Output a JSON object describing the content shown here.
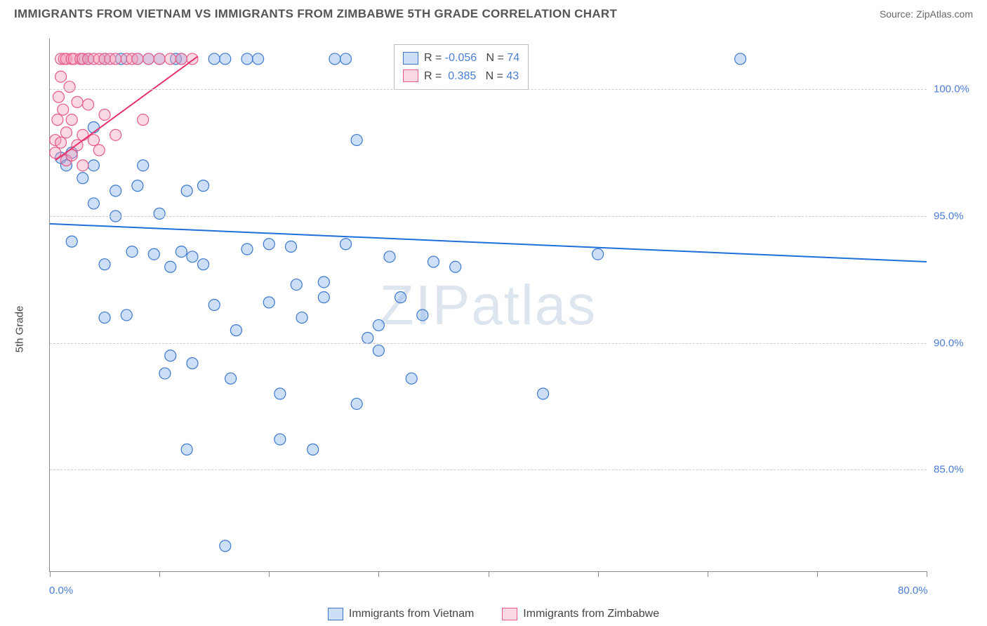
{
  "title": "IMMIGRANTS FROM VIETNAM VS IMMIGRANTS FROM ZIMBABWE 5TH GRADE CORRELATION CHART",
  "source": "Source: ZipAtlas.com",
  "ylabel": "5th Grade",
  "watermark": "ZIPatlas",
  "chart": {
    "type": "scatter",
    "background_color": "#ffffff",
    "grid_color": "#cccccc",
    "axis_color": "#888888",
    "tick_label_color": "#4a7dd4",
    "xlim": [
      0,
      80
    ],
    "ylim": [
      81,
      102
    ],
    "x_ticks": [
      0,
      10,
      20,
      30,
      40,
      50,
      60,
      70,
      80
    ],
    "x_tick_labels": {
      "0": "0.0%",
      "80": "80.0%"
    },
    "y_ticks": [
      85,
      90,
      95,
      100
    ],
    "y_tick_labels": {
      "85": "85.0%",
      "90": "90.0%",
      "95": "95.0%",
      "100": "100.0%"
    },
    "marker_radius": 8,
    "marker_stroke_width": 1.2,
    "line_width": 2
  },
  "series": [
    {
      "name": "Immigrants from Vietnam",
      "color": "#6fa4e8",
      "fill": "rgba(111,164,232,0.35)",
      "stroke": "#3b78cc",
      "R": "-0.056",
      "N": "74",
      "trend": {
        "x1": 0,
        "y1": 94.7,
        "x2": 80,
        "y2": 93.2,
        "color": "#1e6fd9"
      },
      "points": [
        [
          1,
          97.3
        ],
        [
          1.5,
          97.0
        ],
        [
          2,
          94.0
        ],
        [
          2,
          97.5
        ],
        [
          3,
          101.2
        ],
        [
          3,
          96.5
        ],
        [
          3.5,
          101.2
        ],
        [
          4,
          98.5
        ],
        [
          4,
          95.5
        ],
        [
          4,
          97.0
        ],
        [
          5,
          93.1
        ],
        [
          5,
          91.0
        ],
        [
          5,
          101.2
        ],
        [
          6,
          95.0
        ],
        [
          6,
          96.0
        ],
        [
          6.5,
          101.2
        ],
        [
          7,
          91.1
        ],
        [
          7.5,
          93.6
        ],
        [
          8,
          96.2
        ],
        [
          8,
          101.2
        ],
        [
          8.5,
          97.0
        ],
        [
          9,
          101.2
        ],
        [
          9.5,
          93.5
        ],
        [
          10,
          101.2
        ],
        [
          10,
          95.1
        ],
        [
          10.5,
          88.8
        ],
        [
          11,
          89.5
        ],
        [
          11,
          93.0
        ],
        [
          11.5,
          101.2
        ],
        [
          12,
          101.2
        ],
        [
          12,
          93.6
        ],
        [
          12.5,
          85.8
        ],
        [
          12.5,
          96.0
        ],
        [
          13,
          89.2
        ],
        [
          13,
          93.4
        ],
        [
          14,
          93.1
        ],
        [
          14,
          96.2
        ],
        [
          15,
          101.2
        ],
        [
          15,
          91.5
        ],
        [
          16,
          101.2
        ],
        [
          16,
          82.0
        ],
        [
          16.5,
          88.6
        ],
        [
          17,
          90.5
        ],
        [
          18,
          93.7
        ],
        [
          18,
          101.2
        ],
        [
          19,
          101.2
        ],
        [
          20,
          93.9
        ],
        [
          20,
          91.6
        ],
        [
          21,
          88.0
        ],
        [
          21,
          86.2
        ],
        [
          22,
          93.8
        ],
        [
          22.5,
          92.3
        ],
        [
          23,
          91.0
        ],
        [
          24,
          85.8
        ],
        [
          25,
          91.8
        ],
        [
          25,
          92.4
        ],
        [
          26,
          101.2
        ],
        [
          27,
          101.2
        ],
        [
          27,
          93.9
        ],
        [
          28,
          87.6
        ],
        [
          28,
          98.0
        ],
        [
          29,
          90.2
        ],
        [
          30,
          90.7
        ],
        [
          30,
          89.7
        ],
        [
          31,
          93.4
        ],
        [
          32,
          91.8
        ],
        [
          33,
          101.2
        ],
        [
          33,
          88.6
        ],
        [
          34,
          91.1
        ],
        [
          35,
          93.2
        ],
        [
          37,
          93.0
        ],
        [
          45,
          88.0
        ],
        [
          50,
          93.5
        ],
        [
          63,
          101.2
        ]
      ]
    },
    {
      "name": "Immigrants from Zimbabwe",
      "color": "#f5a1b9",
      "fill": "rgba(245,161,185,0.4)",
      "stroke": "#e65a8a",
      "R": "0.385",
      "N": "43",
      "trend": {
        "x1": 0.5,
        "y1": 97.2,
        "x2": 13.5,
        "y2": 101.3,
        "color": "#e6336b"
      },
      "points": [
        [
          0.5,
          98.0
        ],
        [
          0.5,
          97.5
        ],
        [
          0.7,
          98.8
        ],
        [
          0.8,
          99.7
        ],
        [
          1,
          97.9
        ],
        [
          1,
          100.5
        ],
        [
          1,
          101.2
        ],
        [
          1.2,
          99.2
        ],
        [
          1.3,
          101.2
        ],
        [
          1.5,
          97.2
        ],
        [
          1.5,
          98.3
        ],
        [
          1.5,
          101.2
        ],
        [
          1.8,
          100.1
        ],
        [
          2,
          97.4
        ],
        [
          2,
          101.2
        ],
        [
          2,
          98.8
        ],
        [
          2.2,
          101.2
        ],
        [
          2.5,
          97.8
        ],
        [
          2.5,
          99.5
        ],
        [
          2.8,
          101.2
        ],
        [
          3,
          97.0
        ],
        [
          3,
          98.2
        ],
        [
          3,
          101.2
        ],
        [
          3.5,
          99.4
        ],
        [
          3.5,
          101.2
        ],
        [
          4,
          101.2
        ],
        [
          4,
          98.0
        ],
        [
          4.5,
          101.2
        ],
        [
          4.5,
          97.6
        ],
        [
          5,
          101.2
        ],
        [
          5,
          99.0
        ],
        [
          5.5,
          101.2
        ],
        [
          6,
          98.2
        ],
        [
          6,
          101.2
        ],
        [
          7,
          101.2
        ],
        [
          7.5,
          101.2
        ],
        [
          8,
          101.2
        ],
        [
          8.5,
          98.8
        ],
        [
          9,
          101.2
        ],
        [
          10,
          101.2
        ],
        [
          11,
          101.2
        ],
        [
          12,
          101.2
        ],
        [
          13,
          101.2
        ]
      ]
    }
  ],
  "stats_legend": {
    "rows": [
      {
        "swatch_fill": "rgba(111,164,232,0.35)",
        "swatch_stroke": "#3b78cc",
        "R_label": "R = ",
        "R_val": "-0.056",
        "N_label": "   N = ",
        "N_val": "74"
      },
      {
        "swatch_fill": "rgba(245,161,185,0.4)",
        "swatch_stroke": "#e65a8a",
        "R_label": "R =  ",
        "R_val": "0.385",
        "N_label": "   N = ",
        "N_val": "43"
      }
    ]
  },
  "bottom_legend": [
    {
      "swatch_fill": "rgba(111,164,232,0.35)",
      "swatch_stroke": "#3b78cc",
      "label": "Immigrants from Vietnam"
    },
    {
      "swatch_fill": "rgba(245,161,185,0.4)",
      "swatch_stroke": "#e65a8a",
      "label": "Immigrants from Zimbabwe"
    }
  ]
}
